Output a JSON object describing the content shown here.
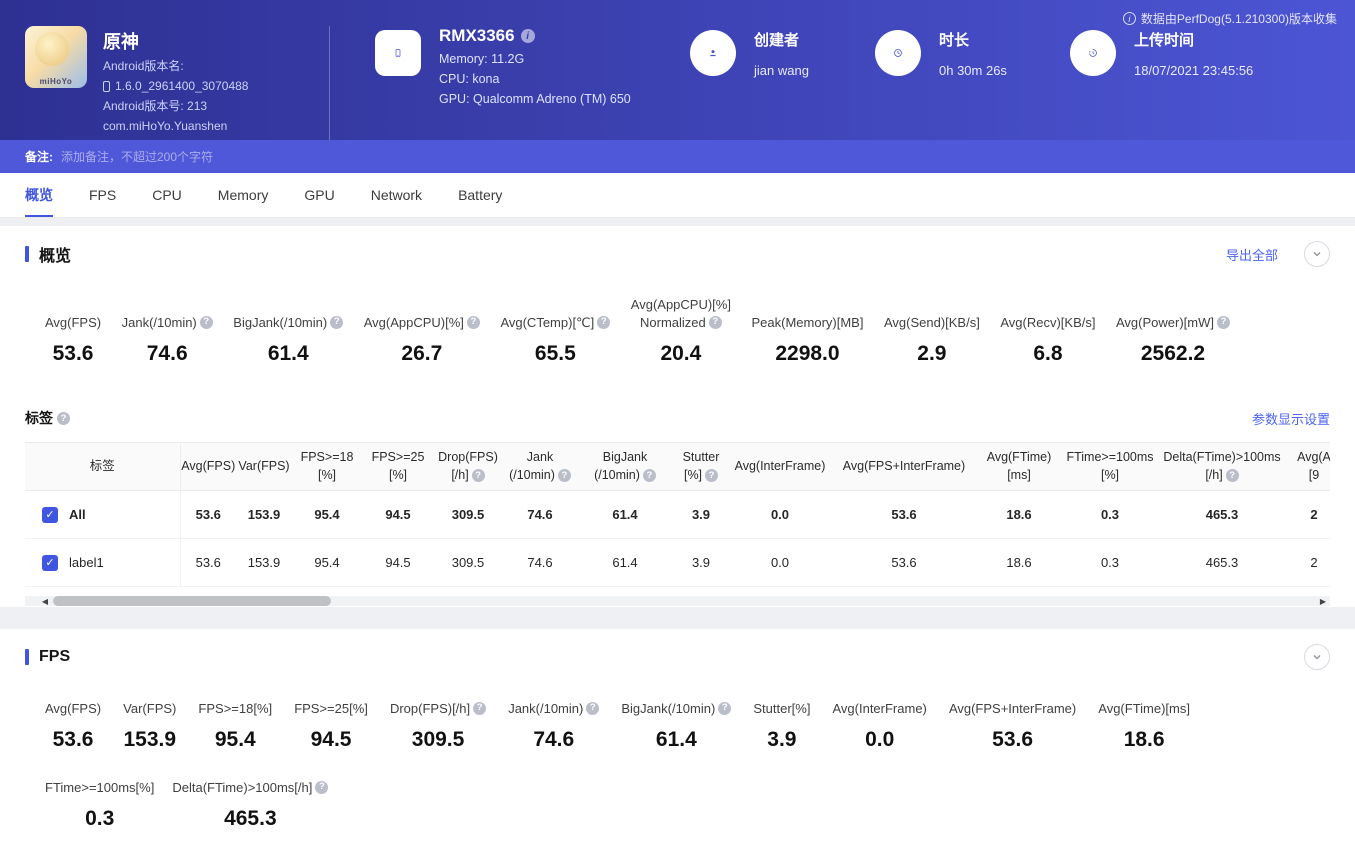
{
  "colors": {
    "header_gradient_from": "#2e3092",
    "header_gradient_to": "#4c55d4",
    "remark_bar": "#4f58d8",
    "accent_blue": "#4156e0",
    "link_blue": "#4c63f2",
    "help_icon_gray": "#b9bec9"
  },
  "icons": {
    "help": "?",
    "info": "i",
    "check": "✓",
    "scroll_left": "◀",
    "scroll_right": "▶"
  },
  "header": {
    "collect_note": "数据由PerfDog(5.1.210300)版本收集",
    "app": {
      "name": "原神",
      "icon_text": "miHoYo",
      "version_label": "Android版本名:",
      "version_value": "1.6.0_2961400_3070488",
      "build_label": "Android版本号: 213",
      "package": "com.miHoYo.Yuanshen"
    },
    "device": {
      "model": "RMX3366",
      "memory": "Memory: 11.2G",
      "cpu": "CPU: kona",
      "gpu": "GPU: Qualcomm Adreno (TM) 650"
    },
    "creator": {
      "label": "创建者",
      "value": "jian wang"
    },
    "duration": {
      "label": "时长",
      "value": "0h 30m 26s"
    },
    "upload": {
      "label": "上传时间",
      "value": "18/07/2021 23:45:56"
    }
  },
  "remark": {
    "label": "备注:",
    "placeholder": "添加备注，不超过200个字符"
  },
  "tabs": [
    {
      "key": "overview",
      "label": "概览",
      "active": true
    },
    {
      "key": "fps",
      "label": "FPS",
      "active": false
    },
    {
      "key": "cpu",
      "label": "CPU",
      "active": false
    },
    {
      "key": "memory",
      "label": "Memory",
      "active": false
    },
    {
      "key": "gpu",
      "label": "GPU",
      "active": false
    },
    {
      "key": "network",
      "label": "Network",
      "active": false
    },
    {
      "key": "battery",
      "label": "Battery",
      "active": false
    }
  ],
  "overview": {
    "title": "概览",
    "export_all": "导出全部",
    "metrics": [
      {
        "label": "Avg(FPS)",
        "value": "53.6"
      },
      {
        "label": "Jank(/10min)",
        "help": true,
        "value": "74.6"
      },
      {
        "label": "BigJank(/10min)",
        "help": true,
        "value": "61.4"
      },
      {
        "label": "Avg(AppCPU)[%]",
        "help": true,
        "value": "26.7"
      },
      {
        "label": "Avg(CTemp)[℃]",
        "help": true,
        "value": "65.5"
      },
      {
        "label": "Avg(AppCPU)[%]",
        "label2": "Normalized",
        "help": true,
        "value": "20.4"
      },
      {
        "label": "Peak(Memory)[MB]",
        "value": "2298.0"
      },
      {
        "label": "Avg(Send)[KB/s]",
        "value": "2.9"
      },
      {
        "label": "Avg(Recv)[KB/s]",
        "value": "6.8"
      },
      {
        "label": "Avg(Power)[mW]",
        "help": true,
        "value": "2562.2"
      }
    ],
    "labels_section": {
      "title": "标签",
      "help": true,
      "settings_link": "参数显示设置"
    }
  },
  "table": {
    "first_col_header": "标签",
    "columns": [
      {
        "lines": [
          "Avg(FPS)"
        ]
      },
      {
        "lines": [
          "Var(FPS)"
        ]
      },
      {
        "lines": [
          "FPS>=18",
          "[%]"
        ]
      },
      {
        "lines": [
          "FPS>=25",
          "[%]"
        ]
      },
      {
        "lines": [
          "Drop(FPS)",
          "[/h]"
        ],
        "help": true
      },
      {
        "lines": [
          "Jank",
          "(/10min)"
        ],
        "help": true
      },
      {
        "lines": [
          "BigJank",
          "(/10min)"
        ],
        "help": true
      },
      {
        "lines": [
          "Stutter",
          "[%]"
        ],
        "help": true
      },
      {
        "lines": [
          "Avg(InterFrame)"
        ]
      },
      {
        "lines": [
          "Avg(FPS+InterFrame)"
        ]
      },
      {
        "lines": [
          "Avg(FTime)",
          "[ms]"
        ]
      },
      {
        "lines": [
          "FTime>=100ms",
          "[%]"
        ]
      },
      {
        "lines": [
          "Delta(FTime)>100ms",
          "[/h]"
        ],
        "help": true
      },
      {
        "lines": [
          "Avg(A",
          "[9"
        ]
      }
    ],
    "rows": [
      {
        "name": "All",
        "checked": true,
        "bold": true,
        "values": [
          "53.6",
          "153.9",
          "95.4",
          "94.5",
          "309.5",
          "74.6",
          "61.4",
          "3.9",
          "0.0",
          "53.6",
          "18.6",
          "0.3",
          "465.3",
          "2"
        ]
      },
      {
        "name": "label1",
        "checked": true,
        "bold": false,
        "values": [
          "53.6",
          "153.9",
          "95.4",
          "94.5",
          "309.5",
          "74.6",
          "61.4",
          "3.9",
          "0.0",
          "53.6",
          "18.6",
          "0.3",
          "465.3",
          "2"
        ]
      }
    ]
  },
  "fps": {
    "title": "FPS",
    "metrics_row1": [
      {
        "label": "Avg(FPS)",
        "value": "53.6"
      },
      {
        "label": "Var(FPS)",
        "value": "153.9"
      },
      {
        "label": "FPS>=18[%]",
        "value": "95.4"
      },
      {
        "label": "FPS>=25[%]",
        "value": "94.5"
      },
      {
        "label": "Drop(FPS)[/h]",
        "help": true,
        "value": "309.5"
      },
      {
        "label": "Jank(/10min)",
        "help": true,
        "value": "74.6"
      },
      {
        "label": "BigJank(/10min)",
        "help": true,
        "value": "61.4"
      },
      {
        "label": "Stutter[%]",
        "value": "3.9"
      },
      {
        "label": "Avg(InterFrame)",
        "value": "0.0"
      },
      {
        "label": "Avg(FPS+InterFrame)",
        "value": "53.6"
      },
      {
        "label": "Avg(FTime)[ms]",
        "value": "18.6"
      }
    ],
    "metrics_row2": [
      {
        "label": "FTime>=100ms[%]",
        "value": "0.3"
      },
      {
        "label": "Delta(FTime)>100ms[/h]",
        "help": true,
        "value": "465.3"
      }
    ]
  }
}
